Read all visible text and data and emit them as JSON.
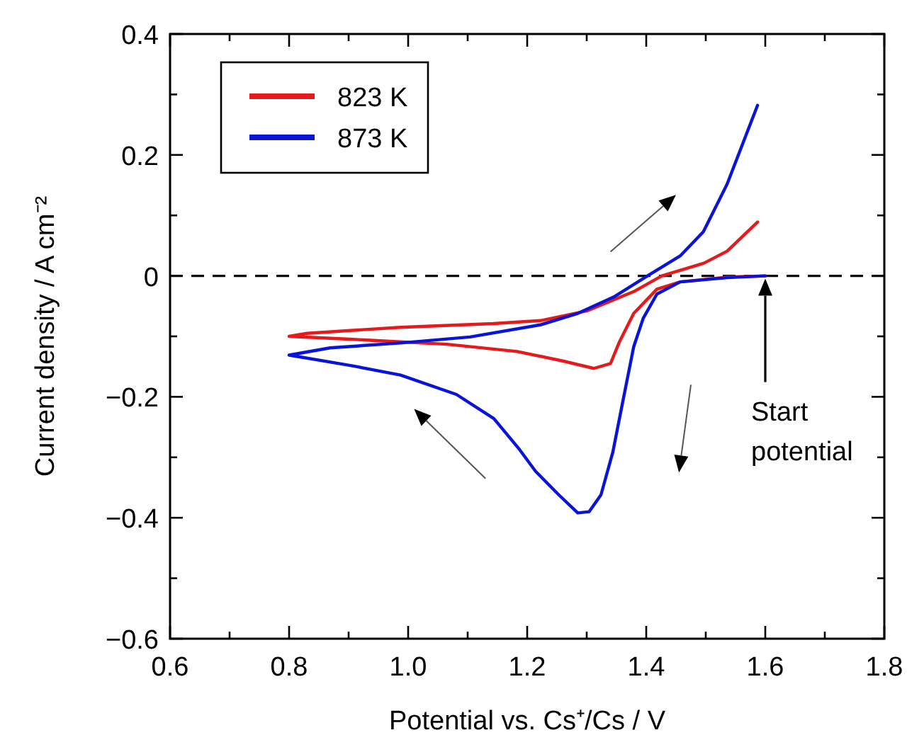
{
  "chart_data": {
    "type": "line",
    "xlabel": "Potential vs. Cs⁺/Cs / V",
    "ylabel": "Current density / A cm⁻²",
    "xlim": [
      0.6,
      1.8
    ],
    "ylim": [
      -0.6,
      0.4
    ],
    "xticks": [
      0.6,
      {
        "value": 0.7,
        "label": null
      },
      0.8,
      {
        "value": 0.9,
        "label": null
      },
      "1.0",
      {
        "value": 1.1,
        "label": null
      },
      1.2,
      {
        "value": 1.3,
        "label": null
      },
      1.4,
      {
        "value": 1.5,
        "label": null
      },
      1.6,
      {
        "value": 1.7,
        "label": null
      },
      1.8
    ],
    "yticks": [
      {
        "value": -0.6,
        "label": "−0.6"
      },
      {
        "value": -0.5,
        "label": null
      },
      {
        "value": -0.4,
        "label": "−0.4"
      },
      {
        "value": -0.3,
        "label": null
      },
      {
        "value": -0.2,
        "label": "−0.2"
      },
      {
        "value": -0.1,
        "label": null
      },
      0,
      {
        "value": 0.1,
        "label": null
      },
      0.2,
      {
        "value": 0.3,
        "label": null
      },
      0.4
    ],
    "grid": false,
    "legend": "top left",
    "line_style": "solid",
    "marker": "none",
    "ref_lines": [
      {
        "axis": "y",
        "value": 0,
        "color": "#000000",
        "line_style": "dashed"
      }
    ],
    "annotations": [
      "Start potential"
    ],
    "series": [
      {
        "name": "823 K",
        "color": "#e41a1c",
        "x": [
          1.6,
          1.536,
          1.457,
          1.418,
          1.379,
          1.355,
          1.34,
          1.312,
          1.261,
          1.183,
          1.065,
          0.987,
          0.908,
          0.8,
          0.83,
          0.987,
          1.143,
          1.222,
          1.3,
          1.379,
          1.426,
          1.497,
          1.536,
          1.587
        ],
        "values": [
          0,
          -0.002,
          -0.01,
          -0.022,
          -0.062,
          -0.109,
          -0.145,
          -0.153,
          -0.141,
          -0.125,
          -0.113,
          -0.109,
          -0.105,
          -0.1,
          -0.095,
          -0.085,
          -0.079,
          -0.074,
          -0.058,
          -0.026,
          0,
          0.021,
          0.041,
          0.089
        ]
      },
      {
        "name": "873 K",
        "color": "#0a14d8",
        "x": [
          1.6,
          1.536,
          1.457,
          1.418,
          1.395,
          1.379,
          1.363,
          1.344,
          1.324,
          1.304,
          1.285,
          1.253,
          1.214,
          1.187,
          1.144,
          1.081,
          0.987,
          0.908,
          0.8,
          0.869,
          0.987,
          1.104,
          1.222,
          1.285,
          1.347,
          1.402,
          1.457,
          1.496,
          1.536,
          1.567,
          1.587
        ],
        "values": [
          0,
          -0.003,
          -0.01,
          -0.03,
          -0.07,
          -0.117,
          -0.196,
          -0.291,
          -0.362,
          -0.39,
          -0.392,
          -0.362,
          -0.323,
          -0.287,
          -0.236,
          -0.196,
          -0.164,
          -0.149,
          -0.131,
          -0.119,
          -0.111,
          -0.101,
          -0.081,
          -0.062,
          -0.034,
          0,
          0.033,
          0.073,
          0.152,
          0.231,
          0.282
        ]
      }
    ]
  }
}
